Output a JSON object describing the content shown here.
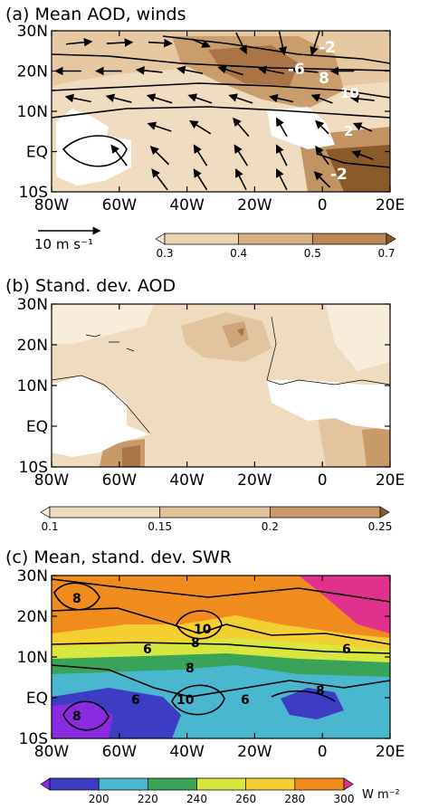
{
  "chart_data": [
    {
      "type": "heatmap",
      "panel_label": "(a)",
      "title": "Mean AOD, winds",
      "x_ticks": [
        "80W",
        "60W",
        "40W",
        "20W",
        "0",
        "20E"
      ],
      "y_ticks": [
        "30N",
        "20N",
        "10N",
        "EQ",
        "10S"
      ],
      "xlim": [
        -80,
        20
      ],
      "ylim": [
        -10,
        30
      ],
      "colorbar": {
        "levels": [
          0.3,
          0.4,
          0.5,
          0.7
        ],
        "labels": [
          "0.3",
          "0.4",
          "0.5",
          "0.7"
        ],
        "colors": [
          "#f6e7d2",
          "#ecd3b2",
          "#d9b183",
          "#bd8856",
          "#8b5a2b"
        ]
      },
      "wind_reference": "10 m s⁻¹",
      "contour_labels": [
        "-2",
        "-6",
        "8",
        "10",
        "2",
        "-2"
      ],
      "wind_arrows": [
        {
          "lon": -72,
          "lat": 27,
          "u": 1,
          "v": 0.1
        },
        {
          "lon": -60,
          "lat": 27,
          "u": 1,
          "v": 0.05
        },
        {
          "lon": -48,
          "lat": 27,
          "u": 0.9,
          "v": -0.05
        },
        {
          "lon": -36,
          "lat": 27,
          "u": 0.7,
          "v": -0.3
        },
        {
          "lon": -24,
          "lat": 27,
          "u": 0.4,
          "v": -0.8
        },
        {
          "lon": -12,
          "lat": 27,
          "u": 0.2,
          "v": -0.9
        },
        {
          "lon": -2,
          "lat": 27,
          "u": -0.3,
          "v": -0.9
        },
        {
          "lon": -75,
          "lat": 20,
          "u": -1,
          "v": 0
        },
        {
          "lon": -63,
          "lat": 20,
          "u": -1,
          "v": 0
        },
        {
          "lon": -51,
          "lat": 20,
          "u": -1,
          "v": 0.1
        },
        {
          "lon": -39,
          "lat": 20,
          "u": -1,
          "v": 0.2
        },
        {
          "lon": -27,
          "lat": 20,
          "u": -1,
          "v": 0.3
        },
        {
          "lon": -15,
          "lat": 20,
          "u": -1,
          "v": 0.2
        },
        {
          "lon": -5,
          "lat": 20,
          "u": -1,
          "v": 0.1
        },
        {
          "lon": 6,
          "lat": 20,
          "u": -0.9,
          "v": 0
        },
        {
          "lon": -72,
          "lat": 13,
          "u": -1,
          "v": 0.2
        },
        {
          "lon": -60,
          "lat": 13,
          "u": -1,
          "v": 0.25
        },
        {
          "lon": -48,
          "lat": 13,
          "u": -1,
          "v": 0.3
        },
        {
          "lon": -36,
          "lat": 13,
          "u": -0.9,
          "v": 0.3
        },
        {
          "lon": -24,
          "lat": 13,
          "u": -0.9,
          "v": 0.3
        },
        {
          "lon": -12,
          "lat": 13,
          "u": -0.9,
          "v": 0.2
        },
        {
          "lon": 0,
          "lat": 13,
          "u": -0.8,
          "v": 0.3
        },
        {
          "lon": 12,
          "lat": 13,
          "u": -0.9,
          "v": 0.1
        },
        {
          "lon": -48,
          "lat": 6,
          "u": -0.9,
          "v": 0.3
        },
        {
          "lon": -36,
          "lat": 6,
          "u": -0.8,
          "v": 0.5
        },
        {
          "lon": -24,
          "lat": 6,
          "u": -0.6,
          "v": 0.7
        },
        {
          "lon": -12,
          "lat": 6,
          "u": -0.4,
          "v": 0.7
        },
        {
          "lon": 0,
          "lat": 6,
          "u": -0.5,
          "v": 0.5
        },
        {
          "lon": 12,
          "lat": 6,
          "u": -0.7,
          "v": 0.3
        },
        {
          "lon": -60,
          "lat": -1,
          "u": -0.6,
          "v": 0.8
        },
        {
          "lon": -48,
          "lat": -1,
          "u": -0.7,
          "v": 0.7
        },
        {
          "lon": -36,
          "lat": -1,
          "u": -0.5,
          "v": 0.8
        },
        {
          "lon": -24,
          "lat": -1,
          "u": -0.5,
          "v": 0.8
        },
        {
          "lon": -12,
          "lat": -1,
          "u": -0.4,
          "v": 0.8
        },
        {
          "lon": 0,
          "lat": -1,
          "u": -0.5,
          "v": 0.7
        },
        {
          "lon": 12,
          "lat": -1,
          "u": -0.8,
          "v": 0.3
        },
        {
          "lon": -48,
          "lat": -7,
          "u": -0.6,
          "v": 0.8
        },
        {
          "lon": -36,
          "lat": -7,
          "u": -0.5,
          "v": 0.8
        },
        {
          "lon": -24,
          "lat": -7,
          "u": -0.4,
          "v": 0.8
        },
        {
          "lon": -12,
          "lat": -7,
          "u": -0.4,
          "v": 0.8
        },
        {
          "lon": 0,
          "lat": -7,
          "u": -0.6,
          "v": 0.6
        }
      ]
    },
    {
      "type": "heatmap",
      "panel_label": "(b)",
      "title": "Stand. dev. AOD",
      "x_ticks": [
        "80W",
        "60W",
        "40W",
        "20W",
        "0",
        "20E"
      ],
      "y_ticks": [
        "30N",
        "20N",
        "10N",
        "EQ",
        "10S"
      ],
      "xlim": [
        -80,
        20
      ],
      "ylim": [
        -10,
        30
      ],
      "colorbar": {
        "levels": [
          0.1,
          0.15,
          0.2,
          0.25
        ],
        "labels": [
          "0.1",
          "0.15",
          "0.2",
          "0.25"
        ],
        "colors": [
          "#fbf0e0",
          "#efdcc0",
          "#e1c39c",
          "#c89a68",
          "#8b5a2b"
        ]
      }
    },
    {
      "type": "heatmap",
      "panel_label": "(c)",
      "title": "Mean, stand. dev. SWR",
      "x_ticks": [
        "80W",
        "60W",
        "40W",
        "20W",
        "0",
        "20E"
      ],
      "y_ticks": [
        "30N",
        "20N",
        "10N",
        "EQ",
        "10S"
      ],
      "xlim": [
        -80,
        20
      ],
      "ylim": [
        -10,
        30
      ],
      "colorbar": {
        "levels": [
          200,
          220,
          240,
          260,
          280,
          300
        ],
        "labels": [
          "200",
          "220",
          "240",
          "260",
          "280",
          "300"
        ],
        "units": "W  m⁻²",
        "colors": [
          "#8a2be2",
          "#3d3dc4",
          "#49b8cf",
          "#3aa35a",
          "#d8e640",
          "#f4cf32",
          "#f08c1e",
          "#e0328c"
        ]
      },
      "contour_labels": [
        "8",
        "10",
        "8",
        "6",
        "6",
        "8",
        "10",
        "6",
        "6",
        "8",
        "8"
      ]
    }
  ]
}
